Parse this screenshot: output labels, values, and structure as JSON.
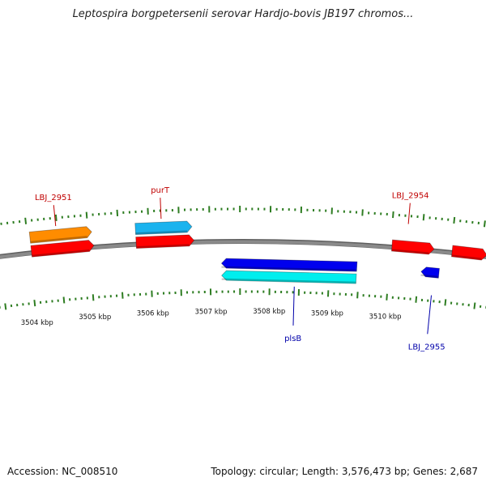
{
  "title": "Leptospira borgpetersenii serovar Hardjo-bovis JB197 chromos...",
  "footer": {
    "accession": "Accession: NC_008510",
    "summary": "Topology: circular; Length: 3,576,473 bp; Genes: 2,687"
  },
  "colors": {
    "backbone": "#8a8a8a",
    "tick": "#2e7d22",
    "label_forward": "#c00000",
    "label_reverse": "#0000aa"
  },
  "scale": {
    "unit": "kbp",
    "labels": [
      "3504 kbp",
      "3505 kbp",
      "3506 kbp",
      "3507 kbp",
      "3508 kbp",
      "3509 kbp",
      "3510 kbp"
    ]
  },
  "genes": [
    {
      "id": "g1",
      "strand": "forward",
      "track": 1,
      "color": "#ff8c00",
      "start": 3504.04,
      "end": 3505.06
    },
    {
      "id": "g2",
      "strand": "forward",
      "track": 2,
      "color": "#ff0000",
      "start": 3504.04,
      "end": 3505.08
    },
    {
      "id": "g3",
      "strand": "forward",
      "track": 1,
      "color": "#1ab3ee",
      "start": 3505.78,
      "end": 3506.71
    },
    {
      "id": "g4",
      "strand": "forward",
      "track": 2,
      "color": "#ff0000",
      "start": 3505.78,
      "end": 3506.74
    },
    {
      "id": "g5",
      "strand": "reverse",
      "track": 1,
      "color": "#0000ee",
      "start": 3507.19,
      "end": 3509.46
    },
    {
      "id": "g6",
      "strand": "reverse",
      "track": 2,
      "color": "#00eeee",
      "start": 3507.19,
      "end": 3509.46
    },
    {
      "id": "g7",
      "strand": "forward",
      "track": 2,
      "color": "#ff0000",
      "start": 3510.02,
      "end": 3510.72
    },
    {
      "id": "g8",
      "strand": "reverse",
      "track": 1,
      "color": "#0000ee",
      "start": 3510.54,
      "end": 3510.84
    },
    {
      "id": "g9",
      "strand": "forward",
      "track": 2,
      "color": "#ff0000",
      "start": 3511.02,
      "end": 3511.6
    }
  ],
  "gene_labels": [
    {
      "text": "LBJ_2951",
      "strand": "forward",
      "position": 3504.48
    },
    {
      "text": "purT",
      "strand": "forward",
      "position": 3506.21
    },
    {
      "text": "LBJ_2954",
      "strand": "forward",
      "position": 3510.26
    },
    {
      "text": "plsB",
      "strand": "reverse",
      "position": 3508.42
    },
    {
      "text": "LBJ_2955",
      "strand": "reverse",
      "position": 3510.75
    }
  ]
}
